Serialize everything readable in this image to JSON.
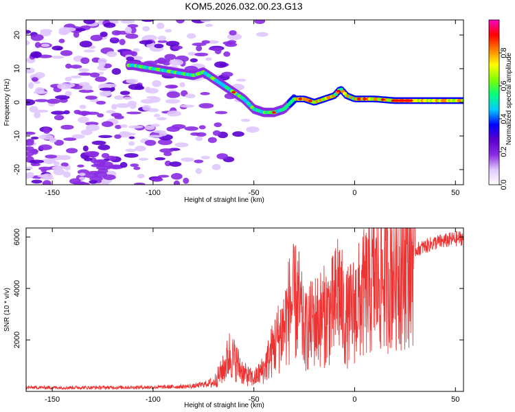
{
  "title": "KOM5.2026.032.00.23.G13",
  "chart_data": [
    {
      "type": "heatmap",
      "name": "spectrogram",
      "xlabel": "Height of straight line (km)",
      "ylabel": "Frequency (Hz)",
      "xlim": [
        -163,
        54
      ],
      "ylim": [
        -24.5,
        24.5
      ],
      "xticks": [
        -150,
        -100,
        -50,
        0,
        50
      ],
      "yticks": [
        -20,
        -10,
        0,
        10,
        20
      ],
      "colorbar": {
        "label": "Normalized spectral amplitude",
        "range": [
          0,
          1
        ],
        "ticks": [
          "0.0",
          "0.2",
          "0.4",
          "0.6",
          "0.8"
        ],
        "colors": [
          "#ffffff",
          "#e0c8ff",
          "#8a2be2",
          "#5a00d0",
          "#0000ff",
          "#00c8ff",
          "#00ff80",
          "#80ff00",
          "#ffff00",
          "#ff8000",
          "#ff0000",
          "#ff00c0"
        ]
      },
      "ridge": {
        "description_hint": "dominant frequency vs height",
        "height_km": [
          -110,
          -100,
          -90,
          -80,
          -75,
          -70,
          -65,
          -60,
          -55,
          -50,
          -45,
          -40,
          -35,
          -30,
          -25,
          -20,
          -15,
          -10,
          -7,
          -4,
          0,
          10,
          20,
          30,
          40,
          54
        ],
        "frequency_hz": [
          11,
          10,
          9,
          8,
          9,
          7,
          5,
          3,
          1,
          -2,
          -3,
          -3,
          -2,
          1,
          1,
          0,
          1,
          2,
          4,
          2,
          1,
          1,
          0.5,
          0.5,
          0.5,
          0.5
        ]
      }
    },
    {
      "type": "line",
      "name": "snr",
      "xlabel": "Height of straight line (km)",
      "ylabel": "SNR (10 * v/v)",
      "xlim": [
        -163,
        54
      ],
      "ylim": [
        0,
        6350
      ],
      "xticks": [
        -150,
        -100,
        -50,
        0,
        50
      ],
      "yticks": [
        2000,
        4000,
        6000
      ],
      "color": "#ee3333",
      "envelope": {
        "height_km": [
          -163,
          -130,
          -100,
          -80,
          -70,
          -65,
          -62,
          -58,
          -55,
          -50,
          -45,
          -40,
          -35,
          -32,
          -28,
          -25,
          -20,
          -15,
          -10,
          -8,
          -5,
          0,
          5,
          10,
          20,
          30,
          40,
          54
        ],
        "snr": [
          150,
          150,
          160,
          200,
          350,
          900,
          1500,
          1100,
          700,
          500,
          900,
          1800,
          2600,
          3400,
          3600,
          2300,
          2800,
          3000,
          3300,
          4200,
          2800,
          3300,
          3900,
          4400,
          5000,
          5600,
          5900,
          6100
        ]
      }
    }
  ]
}
